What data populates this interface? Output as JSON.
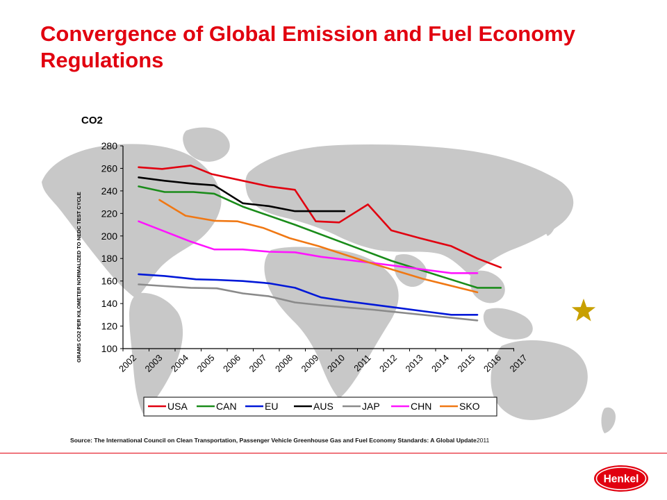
{
  "slide": {
    "title": "Convergence of Global Emission and Fuel Economy Regulations",
    "source_label": "Source:",
    "source_text": "The International Council on Clean Transportation, Passenger Vehicle Greenhouse Gas and Fuel Economy Standards: A Global Update",
    "source_year": "2011",
    "logo_text": "Henkel",
    "colors": {
      "accent": "#e1000f",
      "map": "#c8c8c8"
    }
  },
  "chart_data": {
    "type": "line",
    "title": "CO2",
    "xlabel": "",
    "ylabel": "GRAMS CO2 PER KILOMETER NORMALIZED TO NEDC TEST CYCLE",
    "ylim": [
      100,
      280
    ],
    "yticks": [
      100,
      120,
      140,
      160,
      180,
      200,
      220,
      240,
      260,
      280
    ],
    "xticks": [
      "2002",
      "2003",
      "2004",
      "2005",
      "2006",
      "2007",
      "2008",
      "2009",
      "2010",
      "2011",
      "2012",
      "2013",
      "2014",
      "2015",
      "2016",
      "2017"
    ],
    "xlim": [
      2002,
      2017
    ],
    "grid": false,
    "legend": "bottom",
    "series": [
      {
        "name": "USA",
        "color": "#e1000f",
        "points": [
          [
            2002.6,
            261
          ],
          [
            2003.5,
            259.5
          ],
          [
            2004.6,
            262.5
          ],
          [
            2005.4,
            255
          ],
          [
            2006.6,
            249
          ],
          [
            2007.6,
            244
          ],
          [
            2008.6,
            241
          ],
          [
            2009.4,
            213
          ],
          [
            2010.3,
            212
          ],
          [
            2011.4,
            228
          ],
          [
            2012.3,
            205
          ],
          [
            2013.4,
            198
          ],
          [
            2014.6,
            191
          ],
          [
            2015.6,
            180
          ],
          [
            2016.5,
            172
          ]
        ]
      },
      {
        "name": "CAN",
        "color": "#1a8c1a",
        "points": [
          [
            2002.6,
            244
          ],
          [
            2003.6,
            239
          ],
          [
            2004.7,
            239
          ],
          [
            2005.5,
            237.5
          ],
          [
            2006.6,
            226
          ],
          [
            2008.6,
            210
          ],
          [
            2012.3,
            178
          ],
          [
            2015.6,
            154
          ],
          [
            2016.5,
            154
          ]
        ]
      },
      {
        "name": "EU",
        "color": "#0018d8",
        "points": [
          [
            2002.6,
            166
          ],
          [
            2003.6,
            164.5
          ],
          [
            2004.8,
            161.5
          ],
          [
            2005.6,
            161
          ],
          [
            2006.6,
            160
          ],
          [
            2007.6,
            158
          ],
          [
            2008.6,
            154
          ],
          [
            2009.6,
            145.5
          ],
          [
            2010.6,
            142
          ],
          [
            2011.6,
            139
          ],
          [
            2012.6,
            136
          ],
          [
            2013.6,
            133
          ],
          [
            2014.6,
            130
          ],
          [
            2015.6,
            130
          ]
        ]
      },
      {
        "name": "AUS",
        "color": "#000000",
        "points": [
          [
            2002.6,
            252
          ],
          [
            2003.6,
            249
          ],
          [
            2004.6,
            246.5
          ],
          [
            2005.5,
            245
          ],
          [
            2006.6,
            229
          ],
          [
            2007.6,
            226.5
          ],
          [
            2008.6,
            222
          ],
          [
            2009.6,
            222
          ],
          [
            2010.5,
            222
          ]
        ]
      },
      {
        "name": "JAP",
        "color": "#8a8a8a",
        "points": [
          [
            2002.6,
            157
          ],
          [
            2003.6,
            155.5
          ],
          [
            2004.6,
            154
          ],
          [
            2005.6,
            153.5
          ],
          [
            2006.6,
            149
          ],
          [
            2007.6,
            146.5
          ],
          [
            2008.6,
            141
          ],
          [
            2009.6,
            138.5
          ],
          [
            2011.6,
            134.5
          ],
          [
            2015.6,
            125
          ]
        ]
      },
      {
        "name": "CHN",
        "color": "#ff14ff",
        "points": [
          [
            2002.6,
            213
          ],
          [
            2003.6,
            204
          ],
          [
            2004.6,
            195
          ],
          [
            2005.5,
            188
          ],
          [
            2006.6,
            188
          ],
          [
            2007.6,
            186
          ],
          [
            2008.6,
            185.5
          ],
          [
            2009.6,
            181.5
          ],
          [
            2011.6,
            176
          ],
          [
            2014.6,
            167
          ],
          [
            2015.6,
            167
          ]
        ]
      },
      {
        "name": "SKO",
        "color": "#f07814",
        "points": [
          [
            2003.4,
            232
          ],
          [
            2004.4,
            218
          ],
          [
            2005.5,
            213.5
          ],
          [
            2006.4,
            213
          ],
          [
            2007.4,
            207
          ],
          [
            2008.4,
            198
          ],
          [
            2009.5,
            191
          ],
          [
            2011.5,
            176
          ],
          [
            2013.5,
            162
          ],
          [
            2015.6,
            150
          ]
        ]
      }
    ]
  }
}
